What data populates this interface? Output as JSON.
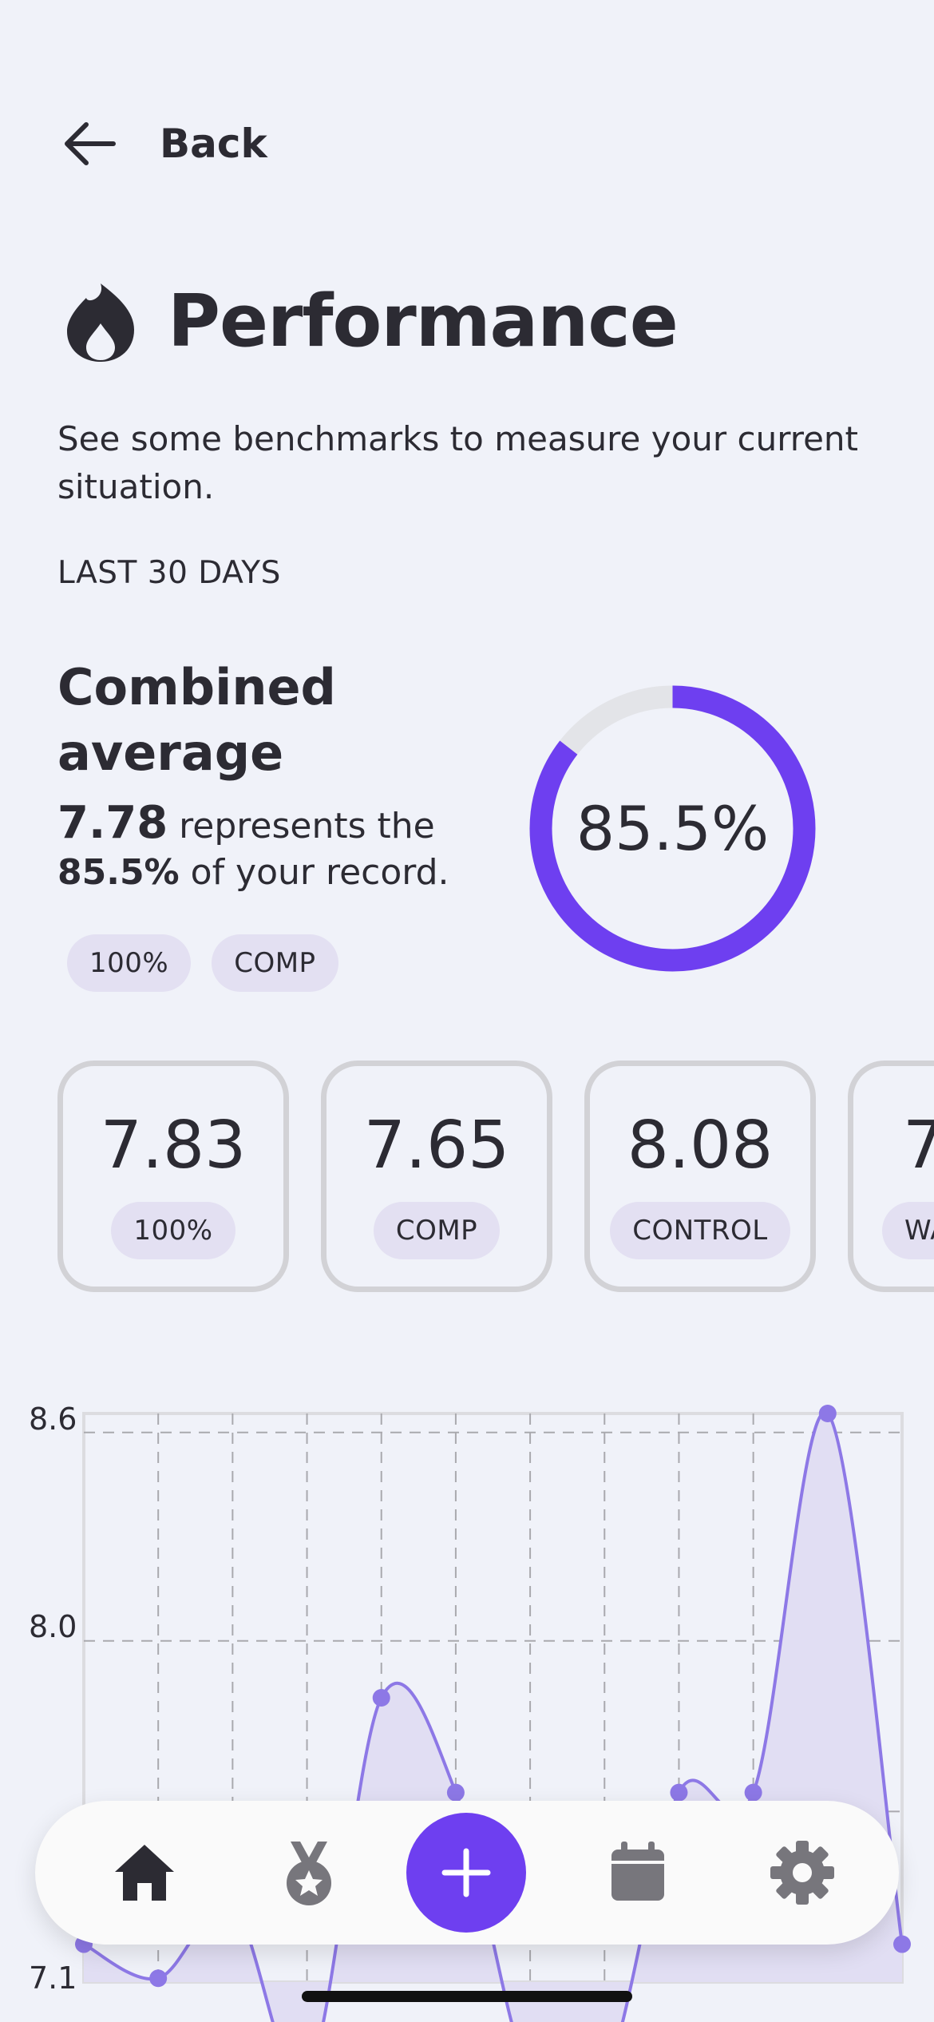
{
  "header": {
    "back_label": "Back"
  },
  "page": {
    "title": "Performance",
    "subtitle": "See some benchmarks to measure your current situation.",
    "period": "LAST 30 DAYS"
  },
  "combined": {
    "heading": "Combined average",
    "value": "7.78",
    "text1": " represents the",
    "percent": "85.5%",
    "text2": " of your record.",
    "chips": [
      "100%",
      "COMP"
    ],
    "donut_label": "85.5%",
    "donut_fraction": 0.855
  },
  "cards": [
    {
      "value": "7.83",
      "label": "100%"
    },
    {
      "value": "7.65",
      "label": "COMP"
    },
    {
      "value": "8.08",
      "label": "CONTROL"
    },
    {
      "value": "7",
      "label": "WA"
    }
  ],
  "chart_data": {
    "type": "area",
    "y_ticks": [
      "8.6",
      "8.0",
      "7.1"
    ],
    "ylim": [
      7.1,
      8.6
    ],
    "grid": true,
    "series": [
      {
        "values": [
          7.2,
          7.11,
          7.3,
          null,
          7.85,
          7.6,
          null,
          null,
          7.6,
          7.6,
          8.6,
          7.2
        ]
      }
    ],
    "colors": {
      "line": "#8d78e6",
      "fill": "#e1def3",
      "point": "#8d78e6"
    }
  },
  "nav": {
    "items": [
      "home-icon",
      "medal-icon",
      "plus-icon",
      "calendar-icon",
      "gear-icon"
    ],
    "accent": "#6e3ff0"
  },
  "colors": {
    "accent": "#6e3ff0",
    "chip_bg": "#e3e0f2",
    "background": "#f0f2f9"
  }
}
